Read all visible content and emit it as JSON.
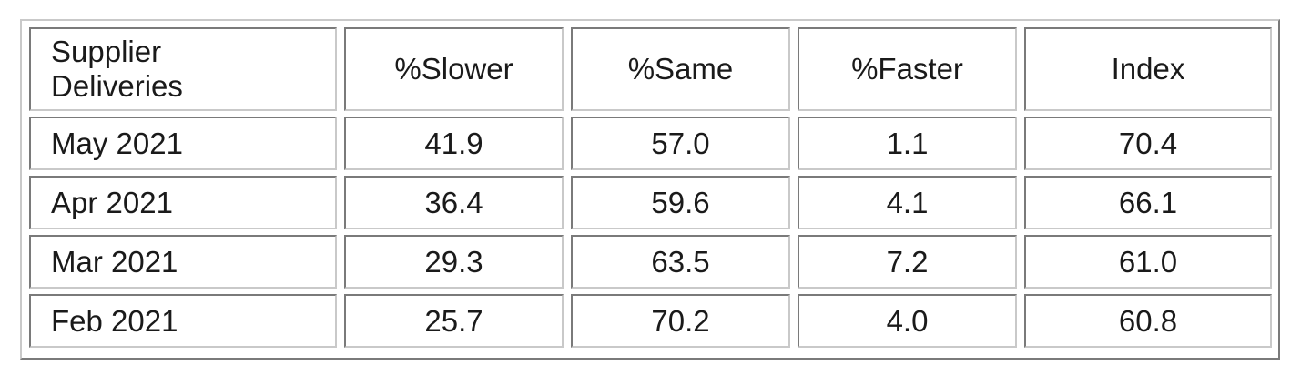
{
  "table": {
    "header": {
      "label": "Supplier\nDeliveries",
      "label_line1": "Supplier",
      "label_line2": "Deliveries",
      "columns": [
        "%Slower",
        "%Same",
        "%Faster",
        "Index"
      ]
    },
    "rows": [
      {
        "month": "May 2021",
        "slower": "41.9",
        "same": "57.0",
        "faster": "1.1",
        "index": "70.4"
      },
      {
        "month": "Apr 2021",
        "slower": "36.4",
        "same": "59.6",
        "faster": "4.1",
        "index": "66.1"
      },
      {
        "month": "Mar 2021",
        "slower": "29.3",
        "same": "63.5",
        "faster": "7.2",
        "index": "61.0"
      },
      {
        "month": "Feb 2021",
        "slower": "25.7",
        "same": "70.2",
        "faster": "4.0",
        "index": "60.8"
      }
    ]
  }
}
